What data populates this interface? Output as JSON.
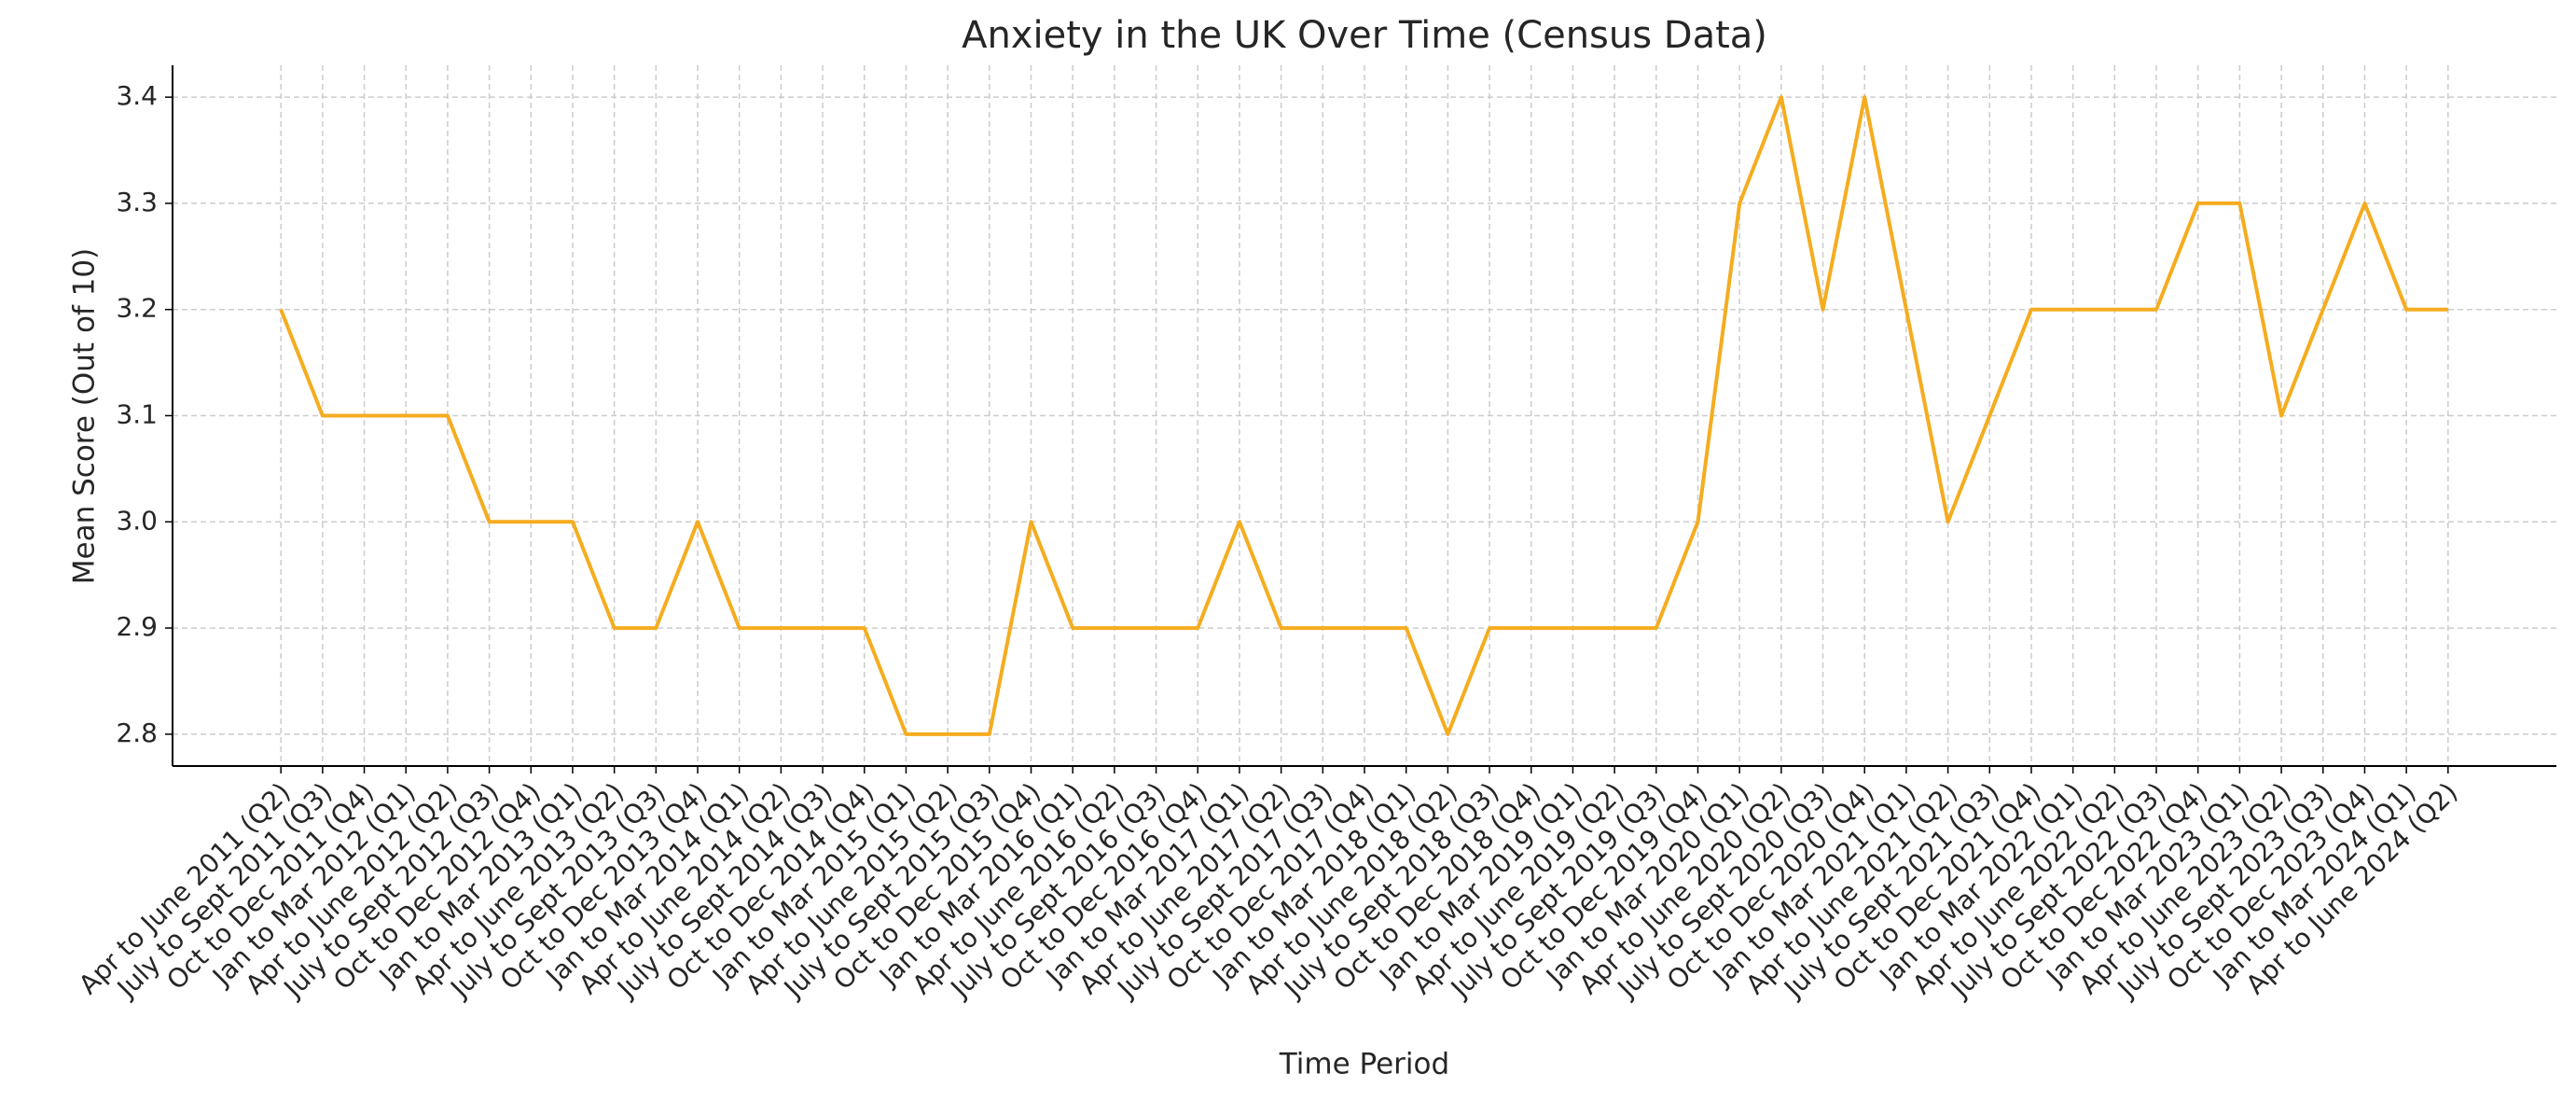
{
  "chart_data": {
    "type": "line",
    "title": "Anxiety in the UK Over Time (Census Data)",
    "x_label": "Time Period",
    "y_label": "Mean Score (Out of 10)",
    "categories": [
      "Apr to June 2011 (Q2)",
      "July to Sept 2011 (Q3)",
      "Oct to Dec 2011 (Q4)",
      "Jan to Mar 2012 (Q1)",
      "Apr to June 2012 (Q2)",
      "July to Sept 2012 (Q3)",
      "Oct to Dec 2012 (Q4)",
      "Jan to Mar 2013 (Q1)",
      "Apr to June 2013 (Q2)",
      "July to Sept 2013 (Q3)",
      "Oct to Dec 2013 (Q4)",
      "Jan to Mar 2014 (Q1)",
      "Apr to June 2014 (Q2)",
      "July to Sept 2014 (Q3)",
      "Oct to Dec 2014 (Q4)",
      "Jan to Mar 2015 (Q1)",
      "Apr to June 2015 (Q2)",
      "July to Sept 2015 (Q3)",
      "Oct to Dec 2015 (Q4)",
      "Jan to Mar 2016 (Q1)",
      "Apr to June 2016 (Q2)",
      "July to Sept 2016 (Q3)",
      "Oct to Dec 2016 (Q4)",
      "Jan to Mar 2017 (Q1)",
      "Apr to June 2017 (Q2)",
      "July to Sept 2017 (Q3)",
      "Oct to Dec 2017 (Q4)",
      "Jan to Mar 2018 (Q1)",
      "Apr to June 2018 (Q2)",
      "July to Sept 2018 (Q3)",
      "Oct to Dec 2018 (Q4)",
      "Jan to Mar 2019 (Q1)",
      "Apr to June 2019 (Q2)",
      "July to Sept 2019 (Q3)",
      "Oct to Dec 2019 (Q4)",
      "Jan to Mar 2020 (Q1)",
      "Apr to June 2020 (Q2)",
      "July to Sept 2020 (Q3)",
      "Oct to Dec 2020 (Q4)",
      "Jan to Mar 2021 (Q1)",
      "Apr to June 2021 (Q2)",
      "July to Sept 2021 (Q3)",
      "Oct to Dec 2021 (Q4)",
      "Jan to Mar 2022 (Q1)",
      "Apr to June 2022 (Q2)",
      "July to Sept 2022 (Q3)",
      "Oct to Dec 2022 (Q4)",
      "Jan to Mar 2023 (Q1)",
      "Apr to June 2023 (Q2)",
      "July to Sept 2023 (Q3)",
      "Oct to Dec 2023 (Q4)",
      "Jan to Mar 2024 (Q1)",
      "Apr to June 2024 (Q2)"
    ],
    "values": [
      3.2,
      3.1,
      3.1,
      3.1,
      3.1,
      3.0,
      3.0,
      3.0,
      2.9,
      2.9,
      3.0,
      2.9,
      2.9,
      2.9,
      2.9,
      2.8,
      2.8,
      2.8,
      3.0,
      2.9,
      2.9,
      2.9,
      2.9,
      3.0,
      2.9,
      2.9,
      2.9,
      2.9,
      2.8,
      2.9,
      2.9,
      2.9,
      2.9,
      2.9,
      3.0,
      3.3,
      3.4,
      3.2,
      3.4,
      3.2,
      3.0,
      3.1,
      3.2,
      3.2,
      3.2,
      3.2,
      3.3,
      3.3,
      3.1,
      3.2,
      3.3,
      3.2,
      3.2
    ],
    "color": "#f5ac1f",
    "ylim": [
      2.77,
      3.43
    ],
    "yticks": [
      2.8,
      2.9,
      {
        "value": 3.0,
        "label": "3.0"
      },
      3.1,
      3.2,
      3.3,
      3.4
    ],
    "grid": true
  }
}
